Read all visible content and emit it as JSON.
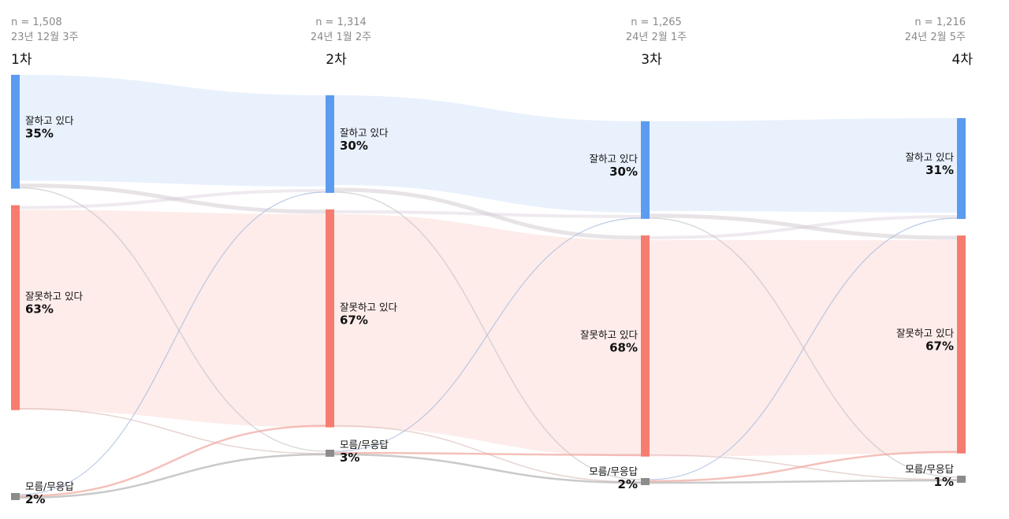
{
  "chart_data": {
    "type": "sankey",
    "waves": [
      {
        "label": "1차",
        "n": "n = 1,508",
        "date": "23년 12월 3주"
      },
      {
        "label": "2차",
        "n": "n = 1,314",
        "date": "24년 1월 2주"
      },
      {
        "label": "3차",
        "n": "n = 1,265",
        "date": "24년 2월 1주"
      },
      {
        "label": "4차",
        "n": "n = 1,216",
        "date": "24년 2월 5주"
      }
    ],
    "categories": [
      {
        "key": "good",
        "label": "잘하고 있다",
        "color": "#5b9cf0",
        "flow_color": "#e9f1fd"
      },
      {
        "key": "bad",
        "label": "잘못하고 있다",
        "color": "#f77c70",
        "flow_color": "#fdecea"
      },
      {
        "key": "dk",
        "label": "모름/무응답",
        "color": "#8c8c8c",
        "flow_color": "#d9d9d9"
      }
    ],
    "values": [
      {
        "good": 35,
        "bad": 63,
        "dk": 2
      },
      {
        "good": 30,
        "bad": 67,
        "dk": 3
      },
      {
        "good": 30,
        "bad": 68,
        "dk": 2
      },
      {
        "good": 31,
        "bad": 67,
        "dk": 1
      }
    ],
    "value_labels": [
      {
        "good": "35%",
        "bad": "63%",
        "dk": "2%"
      },
      {
        "good": "30%",
        "bad": "67%",
        "dk": "3%"
      },
      {
        "good": "30%",
        "bad": "68%",
        "dk": "2%"
      },
      {
        "good": "31%",
        "bad": "67%",
        "dk": "1%"
      }
    ]
  }
}
